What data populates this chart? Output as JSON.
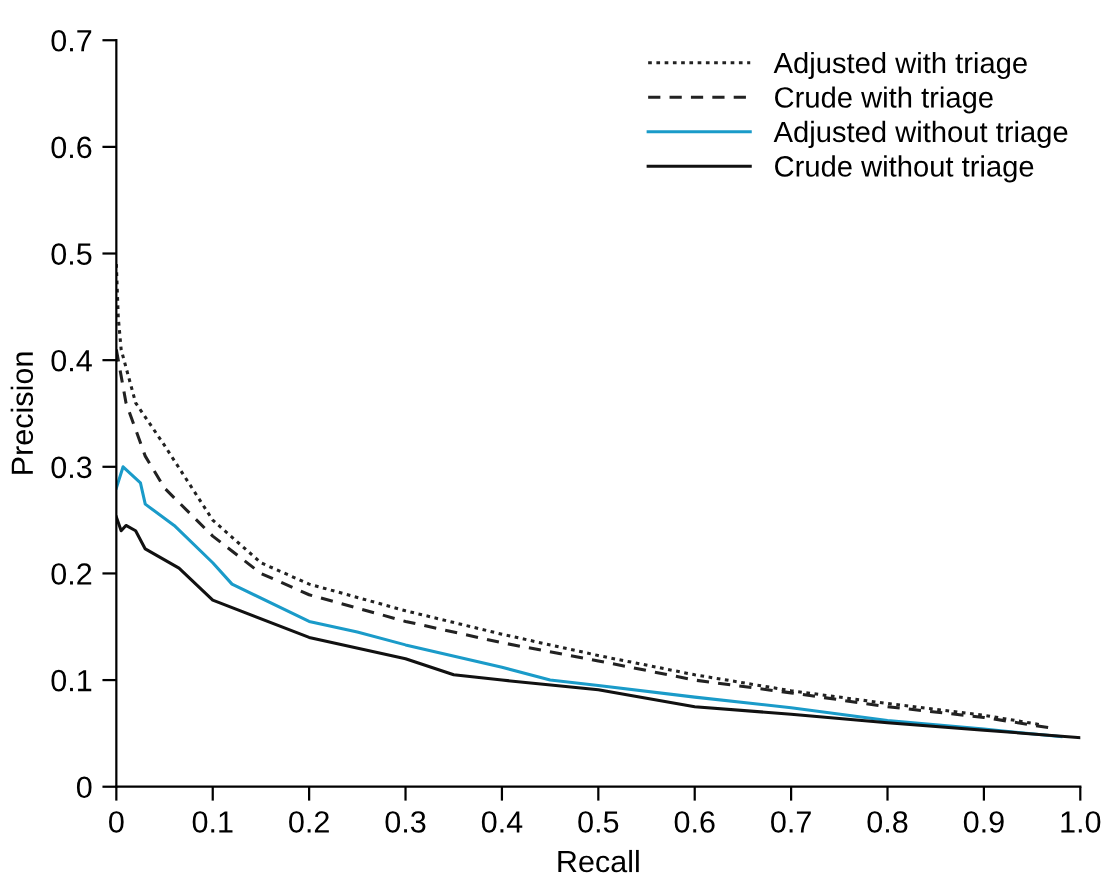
{
  "chart_data": {
    "type": "line",
    "xlabel": "Recall",
    "ylabel": "Precision",
    "xlim": [
      0,
      1.0
    ],
    "ylim": [
      0,
      0.7
    ],
    "xticks": [
      0,
      0.1,
      0.2,
      0.3,
      0.4,
      0.5,
      0.6,
      0.7,
      0.8,
      0.9,
      {
        "value": 1.0,
        "label": "1.0"
      }
    ],
    "yticks": [
      0,
      0.1,
      0.2,
      0.3,
      0.4,
      0.5,
      0.6,
      0.7
    ],
    "grid": false,
    "legend": "top right",
    "series": [
      {
        "name": "Adjusted with triage",
        "color": "#222222",
        "line_style": "dotted",
        "x": [
          0,
          0.002,
          0.005,
          0.02,
          0.05,
          0.1,
          0.15,
          0.2,
          0.3,
          0.4,
          0.5,
          0.6,
          0.7,
          0.8,
          0.9,
          0.96
        ],
        "values": [
          0.49,
          0.44,
          0.41,
          0.36,
          0.32,
          0.25,
          0.21,
          0.19,
          0.165,
          0.143,
          0.123,
          0.105,
          0.09,
          0.078,
          0.067,
          0.058
        ]
      },
      {
        "name": "Crude with triage",
        "color": "#222222",
        "line_style": "dashed",
        "x": [
          0,
          0.01,
          0.03,
          0.05,
          0.1,
          0.15,
          0.2,
          0.3,
          0.4,
          0.5,
          0.6,
          0.7,
          0.8,
          0.9,
          0.97
        ],
        "values": [
          0.41,
          0.36,
          0.31,
          0.28,
          0.235,
          0.2,
          0.18,
          0.155,
          0.135,
          0.118,
          0.1,
          0.088,
          0.075,
          0.065,
          0.055
        ]
      },
      {
        "name": "Adjusted without triage",
        "color": "#1a9bc9",
        "line_style": "solid",
        "x": [
          0,
          0.007,
          0.025,
          0.03,
          0.06,
          0.1,
          0.12,
          0.2,
          0.25,
          0.3,
          0.4,
          0.45,
          0.5,
          0.6,
          0.7,
          0.8,
          0.9,
          0.98
        ],
        "values": [
          0.28,
          0.3,
          0.285,
          0.265,
          0.245,
          0.21,
          0.19,
          0.155,
          0.145,
          0.133,
          0.112,
          0.1,
          0.095,
          0.084,
          0.074,
          0.062,
          0.054,
          0.047
        ]
      },
      {
        "name": "Crude without triage",
        "color": "#111111",
        "line_style": "solid",
        "x": [
          0,
          0.005,
          0.01,
          0.02,
          0.03,
          0.065,
          0.1,
          0.2,
          0.3,
          0.35,
          0.4,
          0.5,
          0.6,
          0.7,
          0.8,
          0.9,
          1.0
        ],
        "values": [
          0.253,
          0.24,
          0.245,
          0.24,
          0.223,
          0.205,
          0.175,
          0.14,
          0.12,
          0.105,
          0.1,
          0.091,
          0.075,
          0.068,
          0.06,
          0.053,
          0.046
        ]
      }
    ]
  }
}
